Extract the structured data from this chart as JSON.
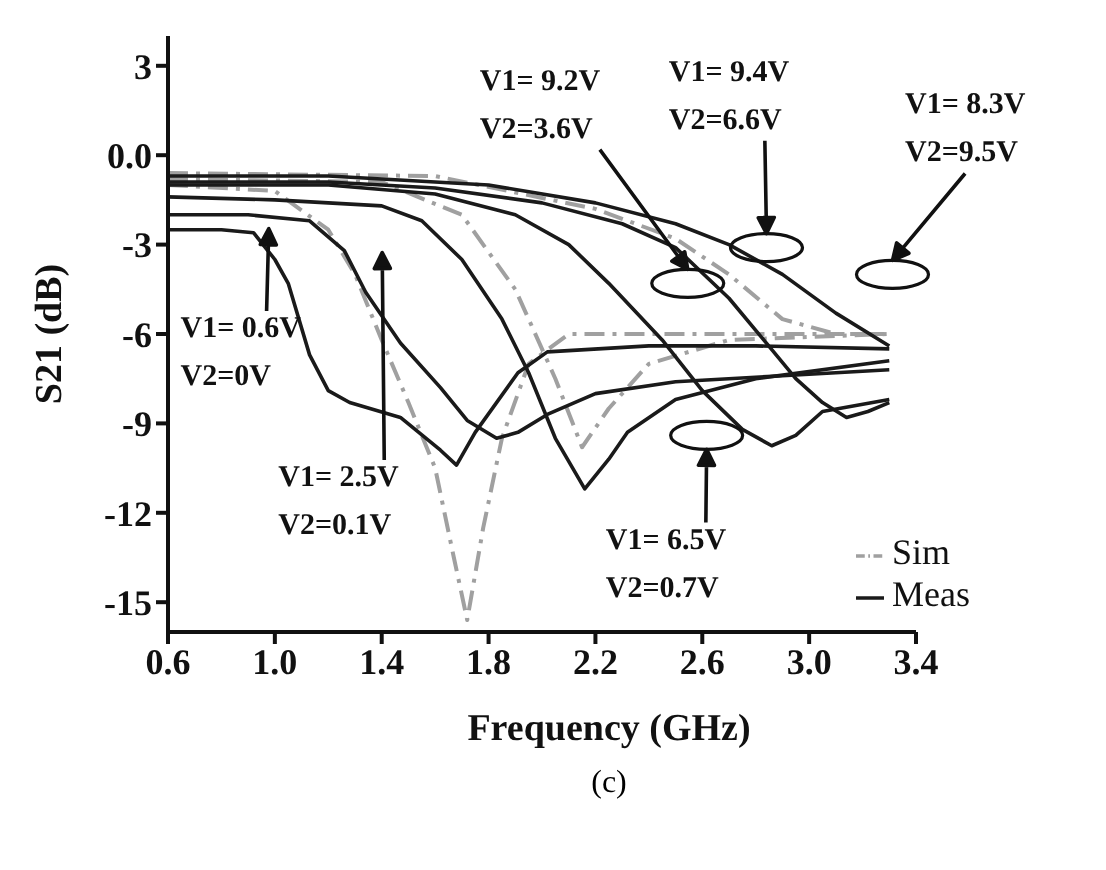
{
  "chart_data": {
    "type": "line",
    "xlabel": "Frequency (GHz)",
    "ylabel": "S21 (dB)",
    "xlim": [
      0.6,
      3.4
    ],
    "xticks": [
      0.6,
      {
        "value": 1,
        "label": "1.0"
      },
      1.4,
      1.8,
      2.2,
      2.6,
      {
        "value": 3,
        "label": "3.0"
      },
      3.4
    ],
    "ylim": [
      -16,
      4
    ],
    "yticks": [
      3,
      {
        "value": 0,
        "label": "0.0"
      },
      -3,
      -6,
      -9,
      -12,
      -15
    ],
    "grid": false,
    "legend": "bottom right",
    "marker": "none",
    "series": [
      {
        "name": "Sim",
        "color": "#a0a0a0",
        "line_style": "dashed",
        "x": [
          0.6,
          1.0,
          1.2,
          1.3,
          1.4,
          1.5,
          1.6,
          1.67,
          1.72,
          1.78,
          1.85,
          1.95,
          2.1,
          2.5,
          3.0,
          3.3
        ],
        "values": [
          -1.0,
          -1.2,
          -2.5,
          -4.0,
          -6.2,
          -8.3,
          -10.5,
          -13.5,
          -15.6,
          -12.5,
          -9.5,
          -7.0,
          -6.0,
          -6.0,
          -6.0,
          -6.0
        ]
      },
      {
        "color": "#a0a0a0",
        "line_style": "dashed",
        "x": [
          0.6,
          1.4,
          1.7,
          1.9,
          2.05,
          2.15,
          2.25,
          2.4,
          2.7,
          3.3
        ],
        "values": [
          -0.8,
          -0.9,
          -2.0,
          -4.5,
          -7.5,
          -9.8,
          -8.5,
          -7.0,
          -6.2,
          -6.0
        ]
      },
      {
        "color": "#a0a0a0",
        "line_style": "dashed",
        "x": [
          0.6,
          1.6,
          2.2,
          2.5,
          2.7,
          2.9,
          3.1,
          3.3
        ],
        "values": [
          -0.6,
          -0.7,
          -1.8,
          -2.8,
          -4.0,
          -5.5,
          -6.0,
          -6.0
        ]
      },
      {
        "name": "Meas",
        "color": "#1a1a1a",
        "line_style": "solid",
        "x": [
          0.6,
          0.8,
          0.92,
          1.0,
          1.05,
          1.13,
          1.2,
          1.28,
          1.47,
          1.62,
          1.68,
          1.75,
          1.91,
          2.02,
          2.4,
          2.8,
          3.3
        ],
        "values": [
          -2.5,
          -2.5,
          -2.6,
          -3.5,
          -4.3,
          -6.7,
          -7.9,
          -8.3,
          -8.8,
          -9.9,
          -10.4,
          -9.3,
          -7.3,
          -6.6,
          -6.4,
          -6.4,
          -6.5
        ]
      },
      {
        "color": "#1a1a1a",
        "line_style": "solid",
        "x": [
          0.6,
          0.9,
          1.13,
          1.26,
          1.34,
          1.47,
          1.62,
          1.72,
          1.83,
          1.91,
          2.02,
          2.2,
          2.5,
          2.9,
          3.3
        ],
        "values": [
          -2.0,
          -2.0,
          -2.2,
          -3.2,
          -4.6,
          -6.3,
          -7.8,
          -8.9,
          -9.5,
          -9.3,
          -8.7,
          -8.0,
          -7.6,
          -7.4,
          -7.2
        ]
      },
      {
        "color": "#1a1a1a",
        "line_style": "solid",
        "x": [
          0.6,
          1.0,
          1.4,
          1.55,
          1.7,
          1.85,
          1.95,
          2.05,
          2.16,
          2.25,
          2.32,
          2.5,
          2.8,
          3.3
        ],
        "values": [
          -1.4,
          -1.5,
          -1.7,
          -2.2,
          -3.5,
          -5.5,
          -7.3,
          -9.5,
          -11.2,
          -10.2,
          -9.3,
          -8.2,
          -7.5,
          -6.9
        ]
      },
      {
        "color": "#1a1a1a",
        "line_style": "solid",
        "x": [
          0.6,
          1.2,
          1.6,
          1.9,
          2.1,
          2.25,
          2.45,
          2.6,
          2.75,
          2.86,
          2.95,
          3.05,
          3.3
        ],
        "values": [
          -1.0,
          -1.0,
          -1.3,
          -2.0,
          -3.0,
          -4.3,
          -6.2,
          -7.9,
          -9.2,
          -9.75,
          -9.4,
          -8.6,
          -8.2
        ]
      },
      {
        "color": "#1a1a1a",
        "line_style": "solid",
        "x": [
          0.6,
          1.2,
          1.6,
          2.0,
          2.3,
          2.5,
          2.7,
          2.83,
          2.95,
          3.05,
          3.14,
          3.22,
          3.3
        ],
        "values": [
          -0.9,
          -0.9,
          -1.1,
          -1.6,
          -2.3,
          -3.1,
          -4.8,
          -6.2,
          -7.5,
          -8.3,
          -8.8,
          -8.6,
          -8.3
        ]
      },
      {
        "color": "#1a1a1a",
        "line_style": "solid",
        "x": [
          0.6,
          1.2,
          1.8,
          2.2,
          2.5,
          2.7,
          2.9,
          3.1,
          3.3
        ],
        "values": [
          -0.7,
          -0.7,
          -1.0,
          -1.6,
          -2.3,
          -3.0,
          -4.0,
          -5.3,
          -6.4
        ]
      }
    ],
    "annotations": [
      {
        "text": "V1= 0.6V\nV2=0V",
        "x": 0.92,
        "y": -2.6
      },
      "V1= 2.5V\nV2=0.1V",
      {
        "text": "V1= 6.5V\nV2=0.7V",
        "x": 2.31,
        "y": -9.4
      },
      "V1= 9.2V\nV2=3.6V",
      "V1= 9.4V\nV2=6.6V",
      "V1= 8.3V\nV2=9.5V",
      "(c)"
    ]
  }
}
